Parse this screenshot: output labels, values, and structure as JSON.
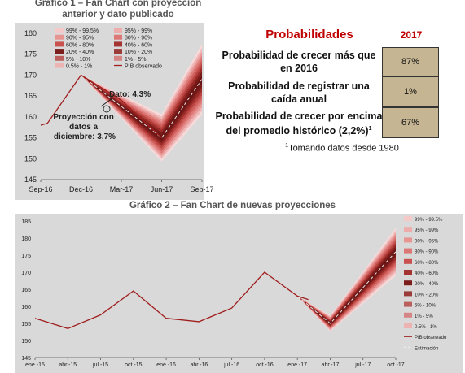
{
  "chart1": {
    "title_line1": "Gráfico 1 –  Fan Chart con proyección",
    "title_line2": "anterior y dato publicado",
    "annotation_dato": "Dato: 4,3%",
    "annotation_proj_line1": "Proyección con",
    "annotation_proj_line2": "datos a",
    "annotation_proj_line3": "diciembre: 3,7%",
    "legend": [
      {
        "label": "99% - 99.5%",
        "color": "#f3c9c9"
      },
      {
        "label": "95% - 99%",
        "color": "#eeadab"
      },
      {
        "label": "90% - 95%",
        "color": "#e89592"
      },
      {
        "label": "80% - 90%",
        "color": "#dc7775"
      },
      {
        "label": "60% - 80%",
        "color": "#c9524f"
      },
      {
        "label": "40% - 60%",
        "color": "#a33431"
      },
      {
        "label": "20% - 40%",
        "color": "#7b1d1b"
      },
      {
        "label": "10% - 20%",
        "color": "#9a3d3a"
      },
      {
        "label": "5% - 10%",
        "color": "#bc5f5c"
      },
      {
        "label": "1% - 5%",
        "color": "#d68584"
      },
      {
        "label": "0.5% - 1%",
        "color": "#ecb3b2"
      },
      {
        "label": "PIB observado",
        "color": "#a01e1e"
      }
    ]
  },
  "chart2": {
    "title": "Gráfico 2 –  Fan Chart de nuevas proyecciones",
    "legend": [
      {
        "label": "99% - 99.5%",
        "color": "#f3c9c9"
      },
      {
        "label": "95% - 99%",
        "color": "#eeadab"
      },
      {
        "label": "90% - 95%",
        "color": "#e89592"
      },
      {
        "label": "80% - 90%",
        "color": "#dc7775"
      },
      {
        "label": "60% - 80%",
        "color": "#c9524f"
      },
      {
        "label": "40% - 60%",
        "color": "#a33431"
      },
      {
        "label": "20% - 40%",
        "color": "#7b1d1b"
      },
      {
        "label": "10% - 20%",
        "color": "#9a3d3a"
      },
      {
        "label": "5% - 10%",
        "color": "#bc5f5c"
      },
      {
        "label": "1% - 5%",
        "color": "#d68584"
      },
      {
        "label": "0.5% - 1%",
        "color": "#ecb3b2"
      },
      {
        "label": "PIB observado",
        "color": "#a01e1e"
      },
      {
        "label": "Estimación",
        "color": "#dddddd"
      }
    ]
  },
  "probabilities": {
    "heading": "Probabilidades",
    "year": "2017",
    "rows": [
      {
        "q1": "Probabilidad de crecer más que",
        "q2": "en 2016",
        "value": "87%"
      },
      {
        "q1": "Probabilidad de registrar una",
        "q2": "caída anual",
        "value": "1%"
      },
      {
        "q1": "Probabilidad de crecer por encima",
        "q2": "del promedio histórico (2,2%)",
        "q2_sup": "1",
        "value": "67%"
      }
    ],
    "note_sup": "1",
    "note": "Tomando datos desde 1980"
  },
  "chart_data": [
    {
      "type": "line",
      "ylim": [
        145,
        180
      ],
      "y_ticks": [
        145,
        150,
        155,
        160,
        165,
        170,
        175,
        180
      ],
      "x_ticks": [
        "Sep-16",
        "Dec-16",
        "Mar-17",
        "Jun-17",
        "Sep-17"
      ],
      "x_range": [
        0,
        12
      ],
      "observed": {
        "name": "PIB observado",
        "points": [
          [
            0,
            158
          ],
          [
            0.5,
            158.5
          ],
          [
            3,
            170
          ],
          [
            6,
            164
          ],
          [
            9,
            155
          ]
        ]
      },
      "fan": {
        "start": [
          3,
          170
        ],
        "min_x": 9,
        "min_y": 155,
        "end_x": 12,
        "end_y": 169,
        "outer_half_width_at_end": 8.5
      }
    },
    {
      "type": "line",
      "ylim": [
        145,
        185
      ],
      "y_ticks": [
        145,
        150,
        155,
        160,
        165,
        170,
        175,
        180,
        185
      ],
      "x_ticks": [
        "ene.-15",
        "abr.-15",
        "jul.-15",
        "oct.-15",
        "ene.-16",
        "abr.-16",
        "jul.-16",
        "oct.-16",
        "ene.-17",
        "abr.-17",
        "jul.-17",
        "oct.-17"
      ],
      "observed": {
        "name": "PIB observado",
        "points": [
          [
            0,
            156.5
          ],
          [
            3,
            153.5
          ],
          [
            6,
            157.5
          ],
          [
            9,
            164.5
          ],
          [
            12,
            156.5
          ],
          [
            15,
            155.5
          ],
          [
            18,
            159.5
          ],
          [
            21,
            170
          ],
          [
            24,
            163
          ],
          [
            25,
            162
          ]
        ]
      },
      "fan": {
        "start": [
          24,
          163
        ],
        "min_x": 27,
        "min_y": 155,
        "end_x": 33,
        "end_y": 176,
        "outer_half_width_at_end": 7
      }
    }
  ]
}
